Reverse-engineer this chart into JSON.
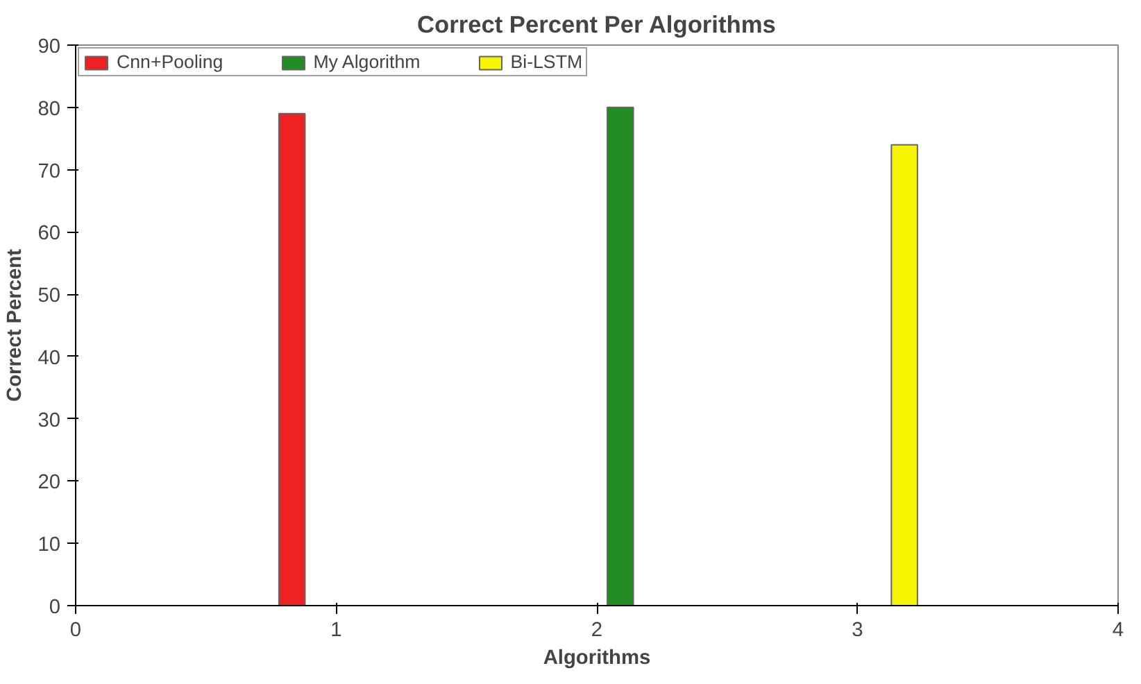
{
  "chart_data": {
    "type": "bar",
    "title": "Correct Percent Per Algorithms",
    "xlabel": "Algorithms",
    "ylabel": "Correct Percent",
    "series": [
      {
        "name": "Cnn+Pooling",
        "color": "#ee2222",
        "x": [
          0.83
        ],
        "values": [
          79
        ]
      },
      {
        "name": "My Algorithm",
        "color": "#228b22",
        "x": [
          2.09
        ],
        "values": [
          80
        ]
      },
      {
        "name": "Bi-LSTM",
        "color": "#f5f500",
        "x": [
          3.18
        ],
        "values": [
          74
        ]
      }
    ],
    "xlim": [
      0,
      4
    ],
    "xticks": [
      0,
      1,
      2,
      3,
      4
    ],
    "ylim": [
      0,
      90
    ],
    "yticks": [
      0,
      10,
      20,
      30,
      40,
      50,
      60,
      70,
      80,
      90
    ],
    "grid": false,
    "legend": "top left"
  }
}
